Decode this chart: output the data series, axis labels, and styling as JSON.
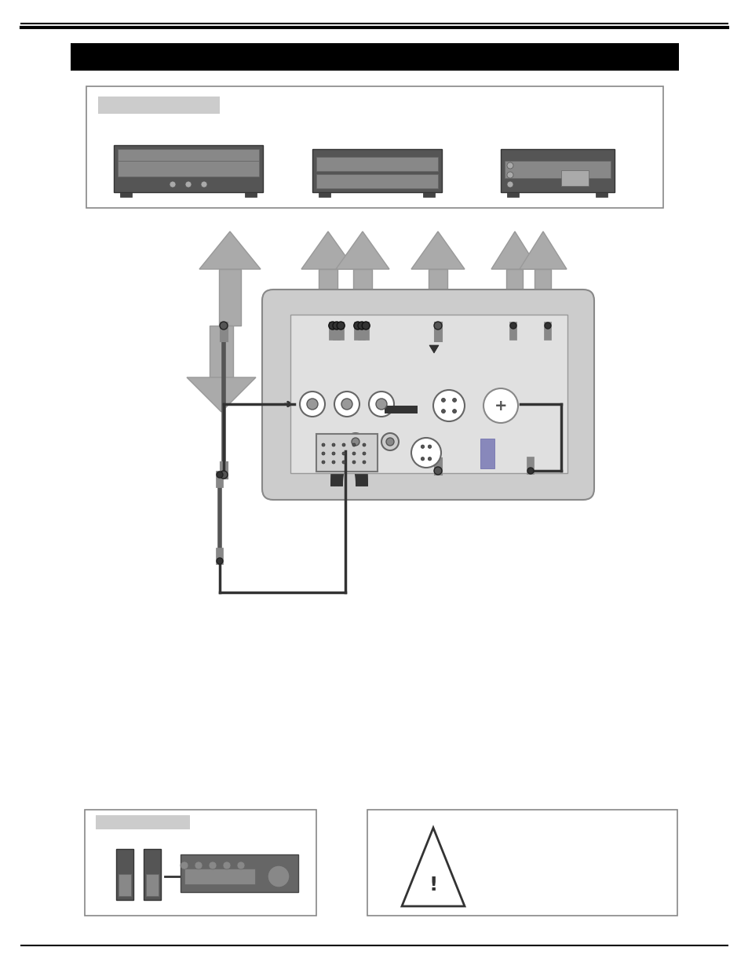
{
  "bg_color": "#ffffff",
  "header_bar_color": "#000000",
  "device_box_ec": "#888888",
  "label_box_color": "#cccccc",
  "device_color": "#555555",
  "device_detail_color": "#888888",
  "arrow_fc": "#aaaaaa",
  "arrow_ec": "#999999",
  "cable_color": "#555555",
  "cable_dark": "#333333",
  "plug_ring_color": "#888888",
  "projector_body_fc": "#cccccc",
  "projector_body_ec": "#888888",
  "panel_fc": "#e0e0e0",
  "panel_ec": "#999999",
  "jack_fc": "#ffffff",
  "jack_ec": "#666666",
  "jack_inner_fc": "#999999",
  "line_color": "#333333",
  "gray_box_fc": "#cccccc",
  "warning_ec": "#888888",
  "warn_tri_ec": "#333333"
}
